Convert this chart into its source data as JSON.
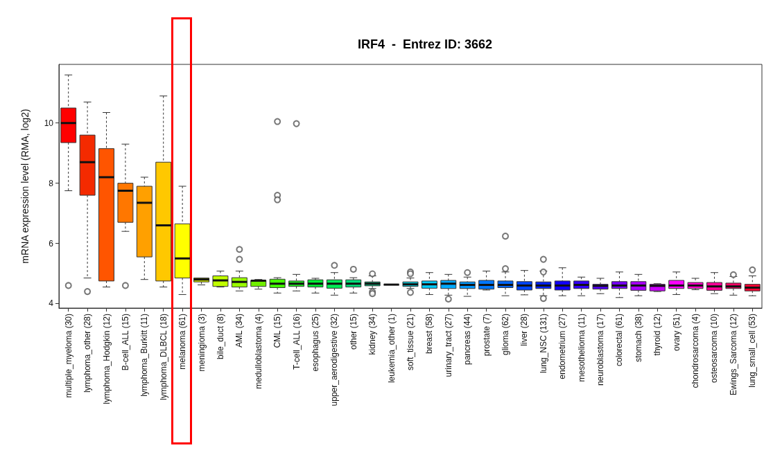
{
  "chart_data": {
    "type": "box",
    "title": "IRF4  -  Entrez ID: 3662",
    "ylabel": "mRNA expression level (RMA, log2)",
    "categories": [
      "multiple_myeloma (30)",
      "lymphoma_other (28)",
      "lymphoma_Hodgkin (12)",
      "B-cell_ALL (15)",
      "lymphoma_Burkitt (11)",
      "lymphoma_DLBCL (18)",
      "melanoma (61)",
      "meningioma (3)",
      "bile_duct (8)",
      "AML (34)",
      "medulloblastoma (4)",
      "CML (15)",
      "T-cell_ALL (16)",
      "esophagus (25)",
      "upper_aerodigestive (32)",
      "other (15)",
      "kidney (34)",
      "leukemia_other (1)",
      "soft_tissue (21)",
      "breast (58)",
      "urinary_tract (27)",
      "pancreas (44)",
      "prostate (7)",
      "glioma (62)",
      "liver (28)",
      "lung_NSC (131)",
      "endometrium (27)",
      "mesothelioma (11)",
      "neuroblastoma (17)",
      "colorectal (61)",
      "stomach (38)",
      "thyroid (12)",
      "ovary (51)",
      "chondrosarcoma (4)",
      "osteosarcoma (10)",
      "Ewings_Sarcoma (12)",
      "lung_small_cell (53)"
    ],
    "colors": [
      "#ff0000",
      "#f42a00",
      "#ff5500",
      "#ff7700",
      "#ffa000",
      "#ffc800",
      "#ffff00",
      "#d8ee00",
      "#c0ff00",
      "#99ff00",
      "#70ee00",
      "#44ff00",
      "#22ee22",
      "#00ee33",
      "#00ee55",
      "#00dd77",
      "#00cc88",
      "#00bbaa",
      "#00ccdd",
      "#00ccff",
      "#00aaff",
      "#0099ff",
      "#0077ff",
      "#0066ff",
      "#0044ff",
      "#0022ff",
      "#1100ff",
      "#3300ff",
      "#5500ff",
      "#7700ff",
      "#aa00ff",
      "#cc00ff",
      "#ff00ff",
      "#ff00cc",
      "#ff0099",
      "#ff0066",
      "#ff0033"
    ],
    "boxes": [
      {
        "low": 7.75,
        "q1": 9.35,
        "median": 10.0,
        "q3": 10.5,
        "high": 11.6,
        "outliers": [
          4.6
        ]
      },
      {
        "low": 4.85,
        "q1": 7.6,
        "median": 8.7,
        "q3": 9.6,
        "high": 10.7,
        "outliers": [
          4.4
        ]
      },
      {
        "low": 4.55,
        "q1": 4.75,
        "median": 8.2,
        "q3": 9.15,
        "high": 10.35
      },
      {
        "low": 6.4,
        "q1": 6.7,
        "median": 7.75,
        "q3": 8.0,
        "high": 9.3,
        "outliers": [
          4.6
        ]
      },
      {
        "low": 4.8,
        "q1": 5.55,
        "median": 7.35,
        "q3": 7.9,
        "high": 8.2
      },
      {
        "low": 4.55,
        "q1": 4.75,
        "median": 6.6,
        "q3": 8.7,
        "high": 10.9
      },
      {
        "low": 4.3,
        "q1": 4.85,
        "median": 5.5,
        "q3": 6.65,
        "high": 7.9
      },
      {
        "low": 4.62,
        "q1": 4.72,
        "median": 4.8,
        "q3": 4.85,
        "high": 4.85
      },
      {
        "low": 4.55,
        "q1": 4.57,
        "median": 4.77,
        "q3": 4.92,
        "high": 5.08
      },
      {
        "low": 4.42,
        "q1": 4.55,
        "median": 4.72,
        "q3": 4.86,
        "high": 5.08,
        "outliers": [
          5.8,
          5.47
        ]
      },
      {
        "low": 4.48,
        "q1": 4.57,
        "median": 4.76,
        "q3": 4.77,
        "high": 4.8
      },
      {
        "low": 4.35,
        "q1": 4.53,
        "median": 4.66,
        "q3": 4.81,
        "high": 4.86,
        "outliers": [
          10.05,
          7.6,
          7.45
        ]
      },
      {
        "low": 4.42,
        "q1": 4.57,
        "median": 4.66,
        "q3": 4.75,
        "high": 4.97,
        "outliers": [
          9.98
        ]
      },
      {
        "low": 4.35,
        "q1": 4.55,
        "median": 4.66,
        "q3": 4.79,
        "high": 4.84
      },
      {
        "low": 4.28,
        "q1": 4.51,
        "median": 4.66,
        "q3": 4.79,
        "high": 5.03,
        "outliers": [
          5.27
        ]
      },
      {
        "low": 4.35,
        "q1": 4.55,
        "median": 4.66,
        "q3": 4.79,
        "high": 4.86,
        "outliers": [
          5.14
        ]
      },
      {
        "low": 4.5,
        "q1": 4.59,
        "median": 4.66,
        "q3": 4.72,
        "high": 4.92,
        "outliers": [
          4.99,
          4.39,
          4.33
        ]
      },
      {
        "low": 4.63,
        "q1": 4.63,
        "median": 4.63,
        "q3": 4.63,
        "high": 4.63
      },
      {
        "low": 4.5,
        "q1": 4.57,
        "median": 4.64,
        "q3": 4.72,
        "high": 4.85,
        "outliers": [
          5.05,
          4.99,
          4.37
        ]
      },
      {
        "low": 4.3,
        "q1": 4.51,
        "median": 4.64,
        "q3": 4.75,
        "high": 5.03
      },
      {
        "low": 4.28,
        "q1": 4.5,
        "median": 4.66,
        "q3": 4.77,
        "high": 4.97,
        "outliers": [
          4.15
        ]
      },
      {
        "low": 4.24,
        "q1": 4.5,
        "median": 4.62,
        "q3": 4.72,
        "high": 4.88,
        "outliers": [
          5.03
        ]
      },
      {
        "low": 4.45,
        "q1": 4.48,
        "median": 4.62,
        "q3": 4.77,
        "high": 5.08
      },
      {
        "low": 4.26,
        "q1": 4.53,
        "median": 4.62,
        "q3": 4.75,
        "high": 5.05,
        "outliers": [
          5.16,
          6.24
        ]
      },
      {
        "low": 4.29,
        "q1": 4.45,
        "median": 4.6,
        "q3": 4.73,
        "high": 5.1
      },
      {
        "low": 4.26,
        "q1": 4.5,
        "median": 4.6,
        "q3": 4.72,
        "high": 5.08,
        "outliers": [
          5.47,
          5.05,
          4.17
        ]
      },
      {
        "low": 4.26,
        "q1": 4.45,
        "median": 4.6,
        "q3": 4.75,
        "high": 5.19
      },
      {
        "low": 4.26,
        "q1": 4.5,
        "median": 4.62,
        "q3": 4.75,
        "high": 4.88
      },
      {
        "low": 4.33,
        "q1": 4.48,
        "median": 4.59,
        "q3": 4.64,
        "high": 4.84
      },
      {
        "low": 4.2,
        "q1": 4.5,
        "median": 4.6,
        "q3": 4.73,
        "high": 5.05
      },
      {
        "low": 4.26,
        "q1": 4.44,
        "median": 4.6,
        "q3": 4.73,
        "high": 4.97
      },
      {
        "low": 4.4,
        "q1": 4.42,
        "median": 4.59,
        "q3": 4.64,
        "high": 4.66
      },
      {
        "low": 4.3,
        "q1": 4.5,
        "median": 4.6,
        "q3": 4.77,
        "high": 5.05
      },
      {
        "low": 4.46,
        "q1": 4.5,
        "median": 4.6,
        "q3": 4.7,
        "high": 4.84
      },
      {
        "low": 4.33,
        "q1": 4.44,
        "median": 4.57,
        "q3": 4.7,
        "high": 5.03
      },
      {
        "low": 4.28,
        "q1": 4.5,
        "median": 4.57,
        "q3": 4.68,
        "high": 4.9,
        "outliers": [
          4.96
        ]
      },
      {
        "low": 4.26,
        "q1": 4.42,
        "median": 4.53,
        "q3": 4.64,
        "high": 4.92,
        "outliers": [
          5.12
        ]
      }
    ],
    "ylim": [
      3.85,
      11.95
    ],
    "yticks": [
      4,
      6,
      8,
      10
    ]
  }
}
